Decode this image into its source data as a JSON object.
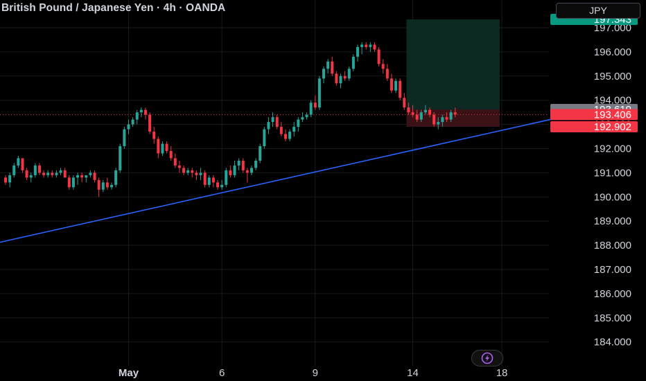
{
  "header": {
    "title": "British Pound / Japanese Yen · 4h · OANDA",
    "currency_button": "JPY"
  },
  "colors": {
    "background": "#000000",
    "grid": "#1b1b1b",
    "bull": "#26a69a",
    "bear": "#f23645",
    "trendline": "#2962ff",
    "current_price_line": "#f23645",
    "tp_zone": "#0c2a22",
    "sl_zone": "#3a1216",
    "axis_text": "#d1d4dc"
  },
  "icons": {
    "boost": "lightning-bolt-icon"
  },
  "price_labels": [
    {
      "value": "197.343",
      "price": 197.343,
      "bg": "#089981",
      "fg": "#ffffff"
    },
    {
      "value": "193.619",
      "price": 193.619,
      "bg": "#787b86",
      "fg": "#ffffff"
    },
    {
      "value": "193.406",
      "price": 193.406,
      "bg": "#f23645",
      "fg": "#ffffff"
    },
    {
      "value": "192.902",
      "price": 192.902,
      "bg": "#f23645",
      "fg": "#ffffff"
    }
  ],
  "chart_data": {
    "type": "candlestick",
    "title": "British Pound / Japanese Yen · 4h · OANDA",
    "symbol": "GBPJPY",
    "timeframe": "4h",
    "source": "OANDA",
    "y_axis": {
      "side": "right",
      "currency": "JPY",
      "range": [
        183.5,
        198.0
      ],
      "ticks": [
        184.0,
        185.0,
        186.0,
        187.0,
        188.0,
        189.0,
        190.0,
        191.0,
        192.0,
        193.0,
        194.0,
        195.0,
        196.0,
        197.0
      ],
      "tick_labels": [
        "184.000",
        "185.000",
        "186.000",
        "187.000",
        "188.000",
        "189.000",
        "190.000",
        "191.000",
        "192.000",
        "193.000",
        "194.000",
        "195.000",
        "196.000",
        "197.000"
      ]
    },
    "x_axis": {
      "labels": [
        "May",
        "6",
        "9",
        "14",
        "18"
      ],
      "label_bars": [
        29,
        51,
        73,
        96,
        117
      ]
    },
    "grid": true,
    "current_price": 193.406,
    "candles": [
      [
        190.8,
        190.9,
        190.5,
        190.6
      ],
      [
        190.6,
        191.0,
        190.4,
        190.9
      ],
      [
        190.9,
        191.4,
        190.8,
        191.3
      ],
      [
        191.3,
        191.7,
        191.2,
        191.6
      ],
      [
        191.6,
        191.6,
        191.0,
        191.1
      ],
      [
        191.1,
        191.2,
        190.7,
        190.8
      ],
      [
        190.8,
        191.0,
        190.6,
        190.9
      ],
      [
        190.9,
        191.4,
        190.8,
        191.3
      ],
      [
        191.3,
        191.4,
        190.9,
        191.0
      ],
      [
        191.0,
        191.1,
        190.8,
        190.9
      ],
      [
        190.9,
        191.1,
        190.8,
        191.0
      ],
      [
        191.0,
        191.1,
        190.8,
        190.9
      ],
      [
        190.9,
        191.1,
        190.8,
        191.0
      ],
      [
        191.0,
        191.2,
        190.9,
        191.1
      ],
      [
        191.1,
        191.2,
        190.8,
        190.8
      ],
      [
        190.8,
        190.9,
        190.3,
        190.4
      ],
      [
        190.4,
        190.9,
        190.3,
        190.8
      ],
      [
        190.8,
        191.0,
        190.5,
        190.9
      ],
      [
        190.9,
        191.0,
        190.6,
        190.8
      ],
      [
        190.8,
        190.9,
        190.6,
        190.9
      ],
      [
        190.9,
        191.1,
        190.8,
        191.0
      ],
      [
        191.0,
        191.1,
        190.6,
        190.7
      ],
      [
        190.7,
        190.8,
        190.0,
        190.3
      ],
      [
        190.3,
        190.7,
        190.2,
        190.6
      ],
      [
        190.6,
        190.8,
        190.3,
        190.4
      ],
      [
        190.4,
        190.6,
        190.3,
        190.5
      ],
      [
        190.5,
        191.2,
        190.4,
        191.1
      ],
      [
        191.1,
        192.2,
        191.0,
        192.1
      ],
      [
        192.1,
        192.9,
        192.0,
        192.8
      ],
      [
        192.8,
        193.2,
        192.6,
        193.0
      ],
      [
        193.0,
        193.3,
        192.9,
        193.2
      ],
      [
        193.2,
        193.6,
        193.0,
        193.5
      ],
      [
        193.5,
        193.7,
        193.3,
        193.6
      ],
      [
        193.6,
        193.7,
        193.2,
        193.4
      ],
      [
        193.4,
        193.5,
        192.6,
        192.7
      ],
      [
        192.7,
        192.9,
        192.2,
        192.4
      ],
      [
        192.4,
        192.5,
        191.6,
        191.8
      ],
      [
        191.8,
        192.3,
        191.7,
        192.2
      ],
      [
        192.2,
        192.3,
        191.8,
        191.9
      ],
      [
        191.9,
        192.1,
        191.5,
        191.6
      ],
      [
        191.6,
        191.8,
        191.2,
        191.3
      ],
      [
        191.3,
        191.5,
        191.0,
        191.2
      ],
      [
        191.2,
        191.3,
        190.9,
        191.0
      ],
      [
        191.0,
        191.2,
        190.9,
        191.1
      ],
      [
        191.1,
        191.2,
        190.8,
        191.0
      ],
      [
        191.0,
        191.1,
        190.7,
        190.9
      ],
      [
        190.9,
        191.2,
        190.7,
        191.0
      ],
      [
        191.0,
        191.1,
        190.4,
        190.5
      ],
      [
        190.5,
        190.9,
        190.4,
        190.8
      ],
      [
        190.8,
        190.9,
        190.4,
        190.6
      ],
      [
        190.6,
        190.7,
        190.3,
        190.4
      ],
      [
        190.4,
        190.7,
        190.3,
        190.5
      ],
      [
        190.5,
        191.2,
        190.4,
        191.1
      ],
      [
        191.1,
        191.3,
        190.8,
        190.9
      ],
      [
        190.9,
        191.5,
        190.8,
        191.3
      ],
      [
        191.3,
        191.6,
        191.1,
        191.5
      ],
      [
        191.5,
        191.6,
        191.0,
        191.1
      ],
      [
        191.1,
        191.2,
        190.6,
        191.0
      ],
      [
        191.0,
        191.3,
        190.9,
        191.2
      ],
      [
        191.2,
        191.6,
        191.1,
        191.5
      ],
      [
        191.5,
        192.2,
        191.4,
        192.1
      ],
      [
        192.1,
        192.9,
        192.0,
        192.8
      ],
      [
        192.8,
        193.3,
        192.6,
        193.1
      ],
      [
        193.1,
        193.5,
        192.9,
        193.3
      ],
      [
        193.3,
        193.4,
        192.8,
        192.9
      ],
      [
        192.9,
        193.1,
        192.5,
        192.6
      ],
      [
        192.6,
        192.8,
        192.3,
        192.4
      ],
      [
        192.4,
        192.8,
        192.3,
        192.7
      ],
      [
        192.7,
        193.1,
        192.5,
        192.9
      ],
      [
        192.9,
        193.3,
        192.7,
        193.2
      ],
      [
        193.2,
        193.5,
        193.1,
        193.3
      ],
      [
        193.3,
        193.5,
        193.2,
        193.4
      ],
      [
        193.4,
        194.0,
        193.3,
        193.9
      ],
      [
        193.9,
        194.2,
        193.6,
        193.7
      ],
      [
        193.7,
        195.0,
        193.6,
        194.9
      ],
      [
        194.9,
        195.4,
        194.7,
        195.3
      ],
      [
        195.3,
        195.7,
        195.1,
        195.6
      ],
      [
        195.6,
        195.8,
        195.0,
        195.1
      ],
      [
        195.1,
        195.2,
        194.6,
        194.7
      ],
      [
        194.7,
        195.1,
        194.5,
        195.0
      ],
      [
        195.0,
        195.2,
        194.8,
        194.9
      ],
      [
        194.9,
        195.4,
        194.8,
        195.3
      ],
      [
        195.3,
        195.9,
        195.2,
        195.8
      ],
      [
        195.8,
        196.3,
        195.6,
        196.2
      ],
      [
        196.2,
        196.4,
        195.9,
        196.3
      ],
      [
        196.3,
        196.4,
        196.1,
        196.2
      ],
      [
        196.2,
        196.4,
        196.0,
        196.3
      ],
      [
        196.3,
        196.4,
        196.0,
        196.1
      ],
      [
        196.1,
        196.2,
        195.4,
        195.5
      ],
      [
        195.5,
        195.7,
        195.1,
        195.3
      ],
      [
        195.3,
        195.5,
        194.8,
        194.9
      ],
      [
        194.9,
        195.1,
        194.3,
        194.4
      ],
      [
        194.4,
        194.9,
        194.3,
        194.8
      ],
      [
        194.8,
        194.9,
        194.0,
        194.1
      ],
      [
        194.1,
        194.3,
        193.6,
        193.7
      ],
      [
        193.7,
        193.9,
        193.4,
        193.5
      ],
      [
        193.5,
        193.8,
        193.3,
        193.4
      ],
      [
        193.4,
        193.6,
        193.1,
        193.2
      ],
      [
        193.2,
        193.6,
        193.1,
        193.5
      ],
      [
        193.5,
        193.8,
        193.4,
        193.6
      ],
      [
        193.6,
        193.7,
        193.3,
        193.4
      ],
      [
        193.4,
        193.5,
        192.9,
        193.0
      ],
      [
        193.0,
        193.3,
        192.8,
        193.1
      ],
      [
        193.1,
        193.4,
        192.9,
        193.3
      ],
      [
        193.3,
        193.5,
        193.1,
        193.2
      ],
      [
        193.2,
        193.6,
        193.1,
        193.5
      ],
      [
        193.5,
        193.7,
        193.3,
        193.406
      ]
    ],
    "annotations": [
      {
        "type": "trendline",
        "from": {
          "bar": -2,
          "price": 188.1
        },
        "to": {
          "bar": 136,
          "price": 193.5
        }
      },
      {
        "type": "long_position",
        "entry": 193.619,
        "take_profit": 197.343,
        "stop_loss": 192.902,
        "start_bar": 95,
        "end_bar": 116
      }
    ]
  }
}
